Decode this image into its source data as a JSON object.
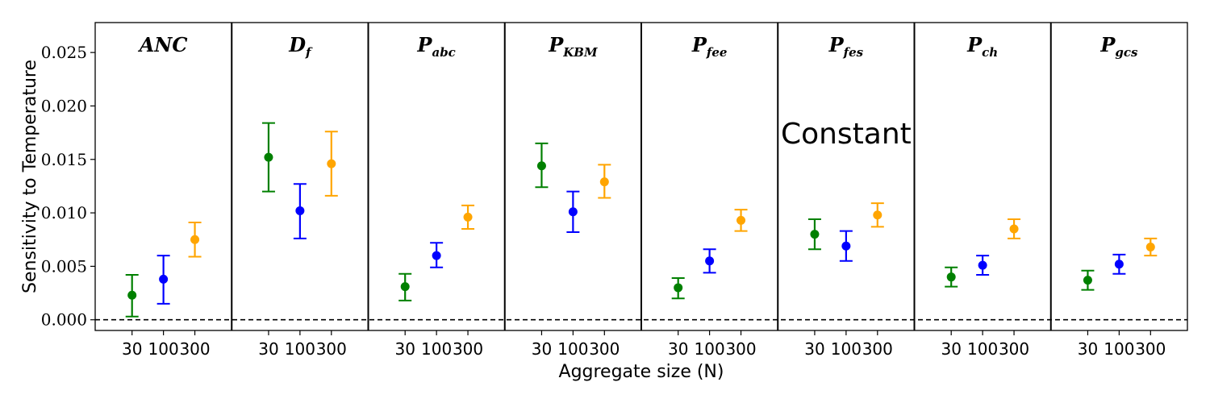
{
  "chart_data": {
    "type": "scatter",
    "ylabel": "Sensitivity to Temperature",
    "xlabel": "Aggregate size (N)",
    "ylim": [
      -0.001,
      0.0278
    ],
    "yticks": [
      {
        "value": 0.0,
        "label": "0.000"
      },
      {
        "value": 0.005,
        "label": "0.005"
      },
      {
        "value": 0.01,
        "label": "0.010"
      },
      {
        "value": 0.015,
        "label": "0.015"
      },
      {
        "value": 0.02,
        "label": "0.020"
      },
      {
        "value": 0.025,
        "label": "0.025"
      }
    ],
    "reference_line": {
      "value": 0.0,
      "style": "dashed"
    },
    "categories": [
      "30",
      "100",
      "300"
    ],
    "series_colors": {
      "30": "#008000",
      "100": "#0000ff",
      "300": "#ffa500"
    },
    "panels": [
      {
        "title": "ANC",
        "subscript": "",
        "points": [
          {
            "n": "30",
            "value": 0.0023,
            "low": 0.0003,
            "high": 0.0042
          },
          {
            "n": "100",
            "value": 0.0038,
            "low": 0.0015,
            "high": 0.006
          },
          {
            "n": "300",
            "value": 0.0075,
            "low": 0.0059,
            "high": 0.0091
          }
        ]
      },
      {
        "title": "D",
        "subscript": "f",
        "points": [
          {
            "n": "30",
            "value": 0.0152,
            "low": 0.012,
            "high": 0.0184
          },
          {
            "n": "100",
            "value": 0.0102,
            "low": 0.0076,
            "high": 0.0127
          },
          {
            "n": "300",
            "value": 0.0146,
            "low": 0.0116,
            "high": 0.0176
          }
        ]
      },
      {
        "title": "P",
        "subscript": "abc",
        "points": [
          {
            "n": "30",
            "value": 0.0031,
            "low": 0.0018,
            "high": 0.0043
          },
          {
            "n": "100",
            "value": 0.006,
            "low": 0.0049,
            "high": 0.0072
          },
          {
            "n": "300",
            "value": 0.0096,
            "low": 0.0085,
            "high": 0.0107
          }
        ]
      },
      {
        "title": "P",
        "subscript": "KBM",
        "points": [
          {
            "n": "30",
            "value": 0.0144,
            "low": 0.0124,
            "high": 0.0165
          },
          {
            "n": "100",
            "value": 0.0101,
            "low": 0.0082,
            "high": 0.012
          },
          {
            "n": "300",
            "value": 0.0129,
            "low": 0.0114,
            "high": 0.0145
          }
        ]
      },
      {
        "title": "P",
        "subscript": "fee",
        "points": [
          {
            "n": "30",
            "value": 0.003,
            "low": 0.002,
            "high": 0.0039
          },
          {
            "n": "100",
            "value": 0.0055,
            "low": 0.0044,
            "high": 0.0066
          },
          {
            "n": "300",
            "value": 0.0093,
            "low": 0.0083,
            "high": 0.0103
          }
        ]
      },
      {
        "title": "P",
        "subscript": "fes",
        "annotation": "Constant",
        "points": [
          {
            "n": "30",
            "value": 0.008,
            "low": 0.0066,
            "high": 0.0094
          },
          {
            "n": "100",
            "value": 0.0069,
            "low": 0.0055,
            "high": 0.0083
          },
          {
            "n": "300",
            "value": 0.0098,
            "low": 0.0087,
            "high": 0.0109
          }
        ]
      },
      {
        "title": "P",
        "subscript": "ch",
        "points": [
          {
            "n": "30",
            "value": 0.004,
            "low": 0.0031,
            "high": 0.0049
          },
          {
            "n": "100",
            "value": 0.0051,
            "low": 0.0042,
            "high": 0.006
          },
          {
            "n": "300",
            "value": 0.0085,
            "low": 0.0076,
            "high": 0.0094
          }
        ]
      },
      {
        "title": "P",
        "subscript": "gcs",
        "points": [
          {
            "n": "30",
            "value": 0.0037,
            "low": 0.0028,
            "high": 0.0046
          },
          {
            "n": "100",
            "value": 0.0052,
            "low": 0.0043,
            "high": 0.0061
          },
          {
            "n": "300",
            "value": 0.0068,
            "low": 0.006,
            "high": 0.0076
          }
        ]
      }
    ]
  }
}
